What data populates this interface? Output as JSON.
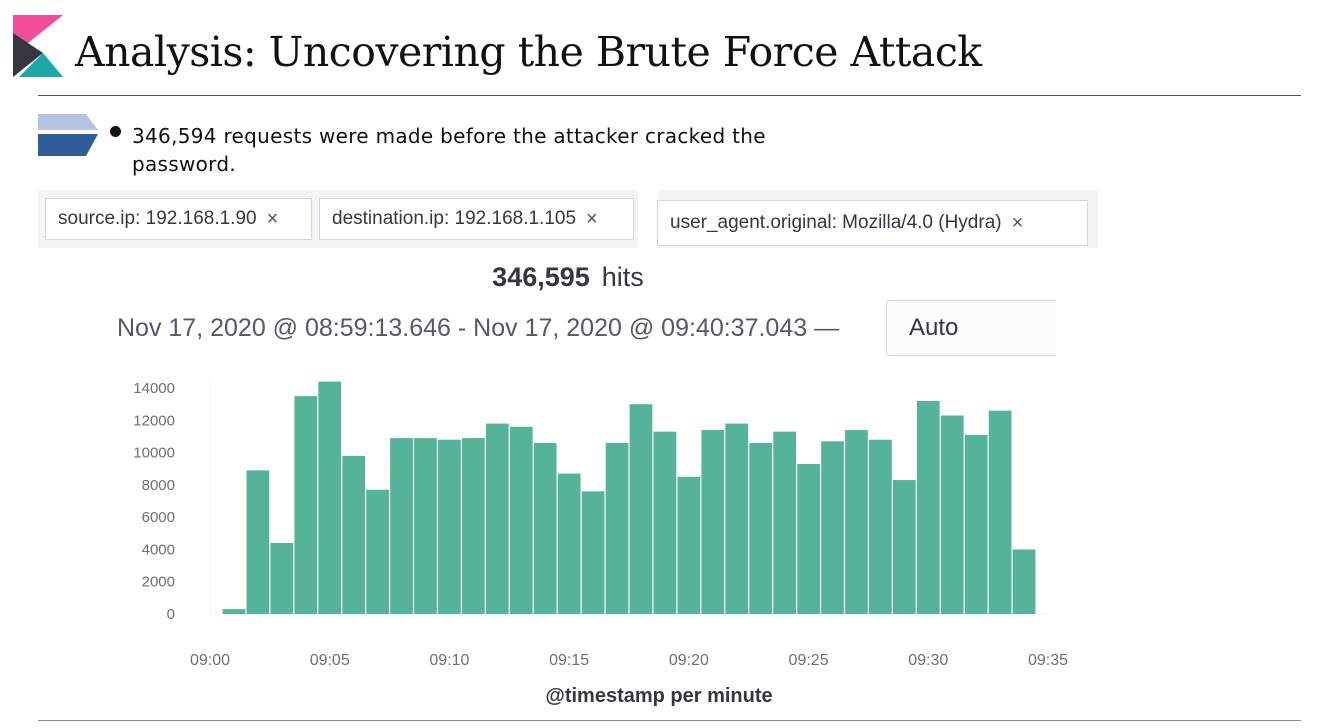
{
  "slide": {
    "title": "Analysis: Uncovering the Brute Force Attack",
    "bullet": "346,594 requests were made before the attacker cracked the password."
  },
  "filters": [
    {
      "label": "source.ip: 192.168.1.90",
      "close": "×"
    },
    {
      "label": "destination.ip: 192.168.1.105",
      "close": "×"
    },
    {
      "label": "user_agent.original: Mozilla/4.0 (Hydra)",
      "close": "×"
    }
  ],
  "hits": {
    "count": "346,595",
    "label": "hits"
  },
  "time_range": "Nov 17, 2020 @ 08:59:13.646 - Nov 17, 2020 @ 09:40:37.043 —",
  "interval_select": "Auto",
  "colors": {
    "bar": "#54b399",
    "logo_pink": "#f04e98",
    "logo_dark": "#343741",
    "logo_teal": "#1ba9a5"
  },
  "chart_data": {
    "type": "bar",
    "xlabel": "@timestamp per minute",
    "ylabel": "",
    "ylim": [
      0,
      14500
    ],
    "yticks": [
      0,
      2000,
      4000,
      6000,
      8000,
      10000,
      12000,
      14000
    ],
    "xticks": [
      "09:00",
      "09:05",
      "09:10",
      "09:15",
      "09:20",
      "09:25",
      "09:30",
      "09:35"
    ],
    "x_minutes": [
      1,
      2,
      3,
      4,
      5,
      6,
      7,
      8,
      9,
      10,
      11,
      12,
      13,
      14,
      15,
      16,
      17,
      18,
      19,
      20,
      21,
      22,
      23,
      24,
      25,
      26,
      27,
      28,
      29,
      30,
      31,
      32,
      33,
      34
    ],
    "values": [
      300,
      8900,
      4400,
      13500,
      14400,
      9800,
      7700,
      10900,
      10900,
      10800,
      10900,
      11800,
      11600,
      10600,
      8700,
      7600,
      10600,
      13000,
      11300,
      8500,
      11400,
      11800,
      10600,
      11300,
      9300,
      10700,
      11400,
      10800,
      8300,
      13200,
      12300,
      11100,
      12600,
      4000
    ],
    "grid": false
  }
}
